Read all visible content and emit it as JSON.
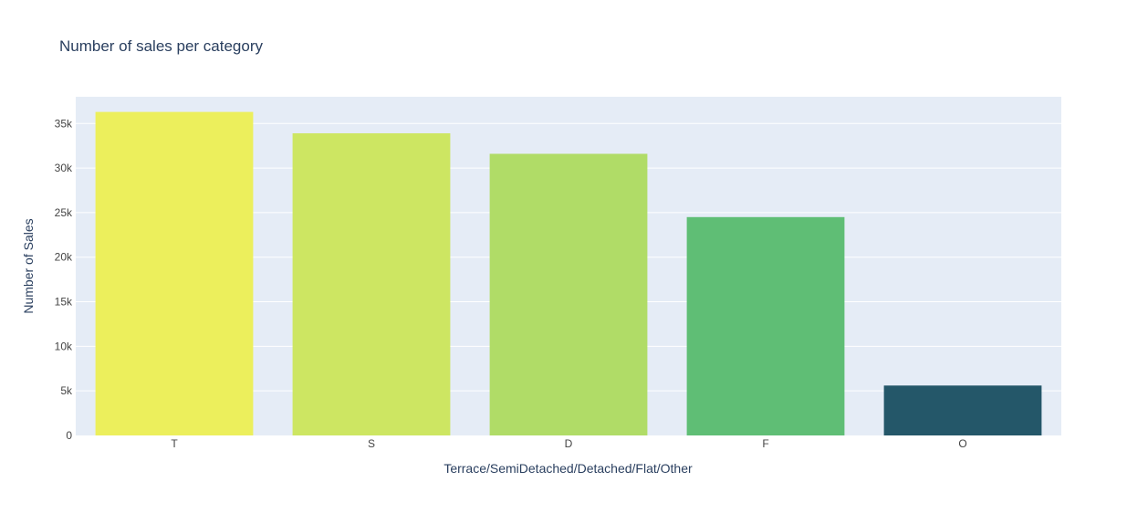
{
  "chart_data": {
    "type": "bar",
    "title": "Number of sales per category",
    "xlabel": "Terrace/SemiDetached/Detached/Flat/Other",
    "ylabel": "Number of Sales",
    "categories": [
      "T",
      "S",
      "D",
      "F",
      "O"
    ],
    "values": [
      36300,
      33900,
      31600,
      24500,
      5600
    ],
    "colors": [
      "#ecef5c",
      "#cde662",
      "#b0dc67",
      "#5fbe75",
      "#245769"
    ],
    "ylim": [
      0,
      38000
    ],
    "yticks": [
      0,
      5000,
      10000,
      15000,
      20000,
      25000,
      30000,
      35000
    ],
    "ytick_labels": [
      "0",
      "5k",
      "10k",
      "15k",
      "20k",
      "25k",
      "30k",
      "35k"
    ],
    "grid": true,
    "plot_background": "#e5ecf6"
  }
}
